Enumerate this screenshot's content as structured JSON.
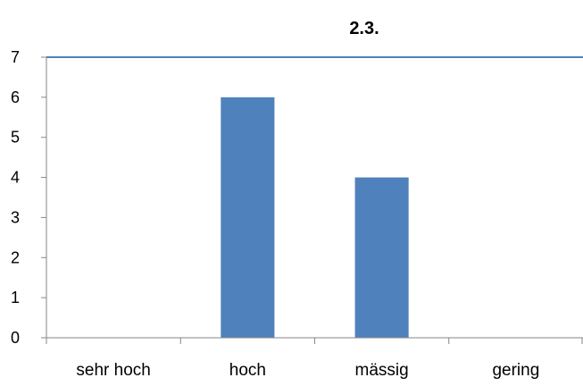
{
  "chart_data": {
    "type": "bar",
    "title": "2.3.",
    "categories": [
      "sehr hoch",
      "hoch",
      "mässig",
      "gering"
    ],
    "values": [
      0,
      6,
      4,
      0
    ],
    "ylim": [
      0,
      7
    ],
    "yticks": [
      0,
      1,
      2,
      3,
      4,
      5,
      6,
      7
    ],
    "grid": false,
    "legend": "none",
    "colors": {
      "bar": "#4F81BD",
      "axis": "#868686",
      "top_line": "#4F81BD"
    }
  }
}
